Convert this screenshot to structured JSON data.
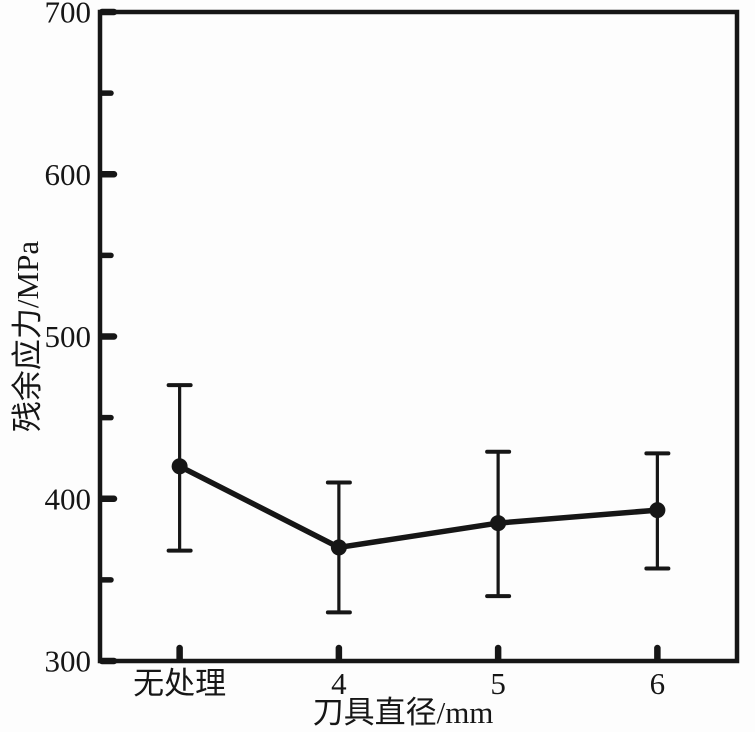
{
  "figure": {
    "background": "#fdfdfd",
    "ink_color": "#161616"
  },
  "chart_data": {
    "type": "line",
    "categories": [
      "无处理",
      "4",
      "5",
      "6"
    ],
    "series": [
      {
        "name": "残余应力",
        "values": [
          420,
          370,
          385,
          393
        ],
        "error_upper": [
          470,
          410,
          429,
          428
        ],
        "error_lower": [
          368,
          330,
          340,
          357
        ]
      }
    ],
    "title": "",
    "xlabel": "刀具直径/mm",
    "ylabel": "残余应力/MPa",
    "ylim": [
      300,
      700
    ],
    "yticks_major": [
      300,
      400,
      500,
      600,
      700
    ],
    "ytick_minor_step": 50,
    "xtick_labels": [
      "无处理",
      "4",
      "5",
      "6"
    ],
    "grid": false,
    "legend": "none",
    "marker": "circle",
    "line_color": "#161616",
    "error_bars": true
  }
}
